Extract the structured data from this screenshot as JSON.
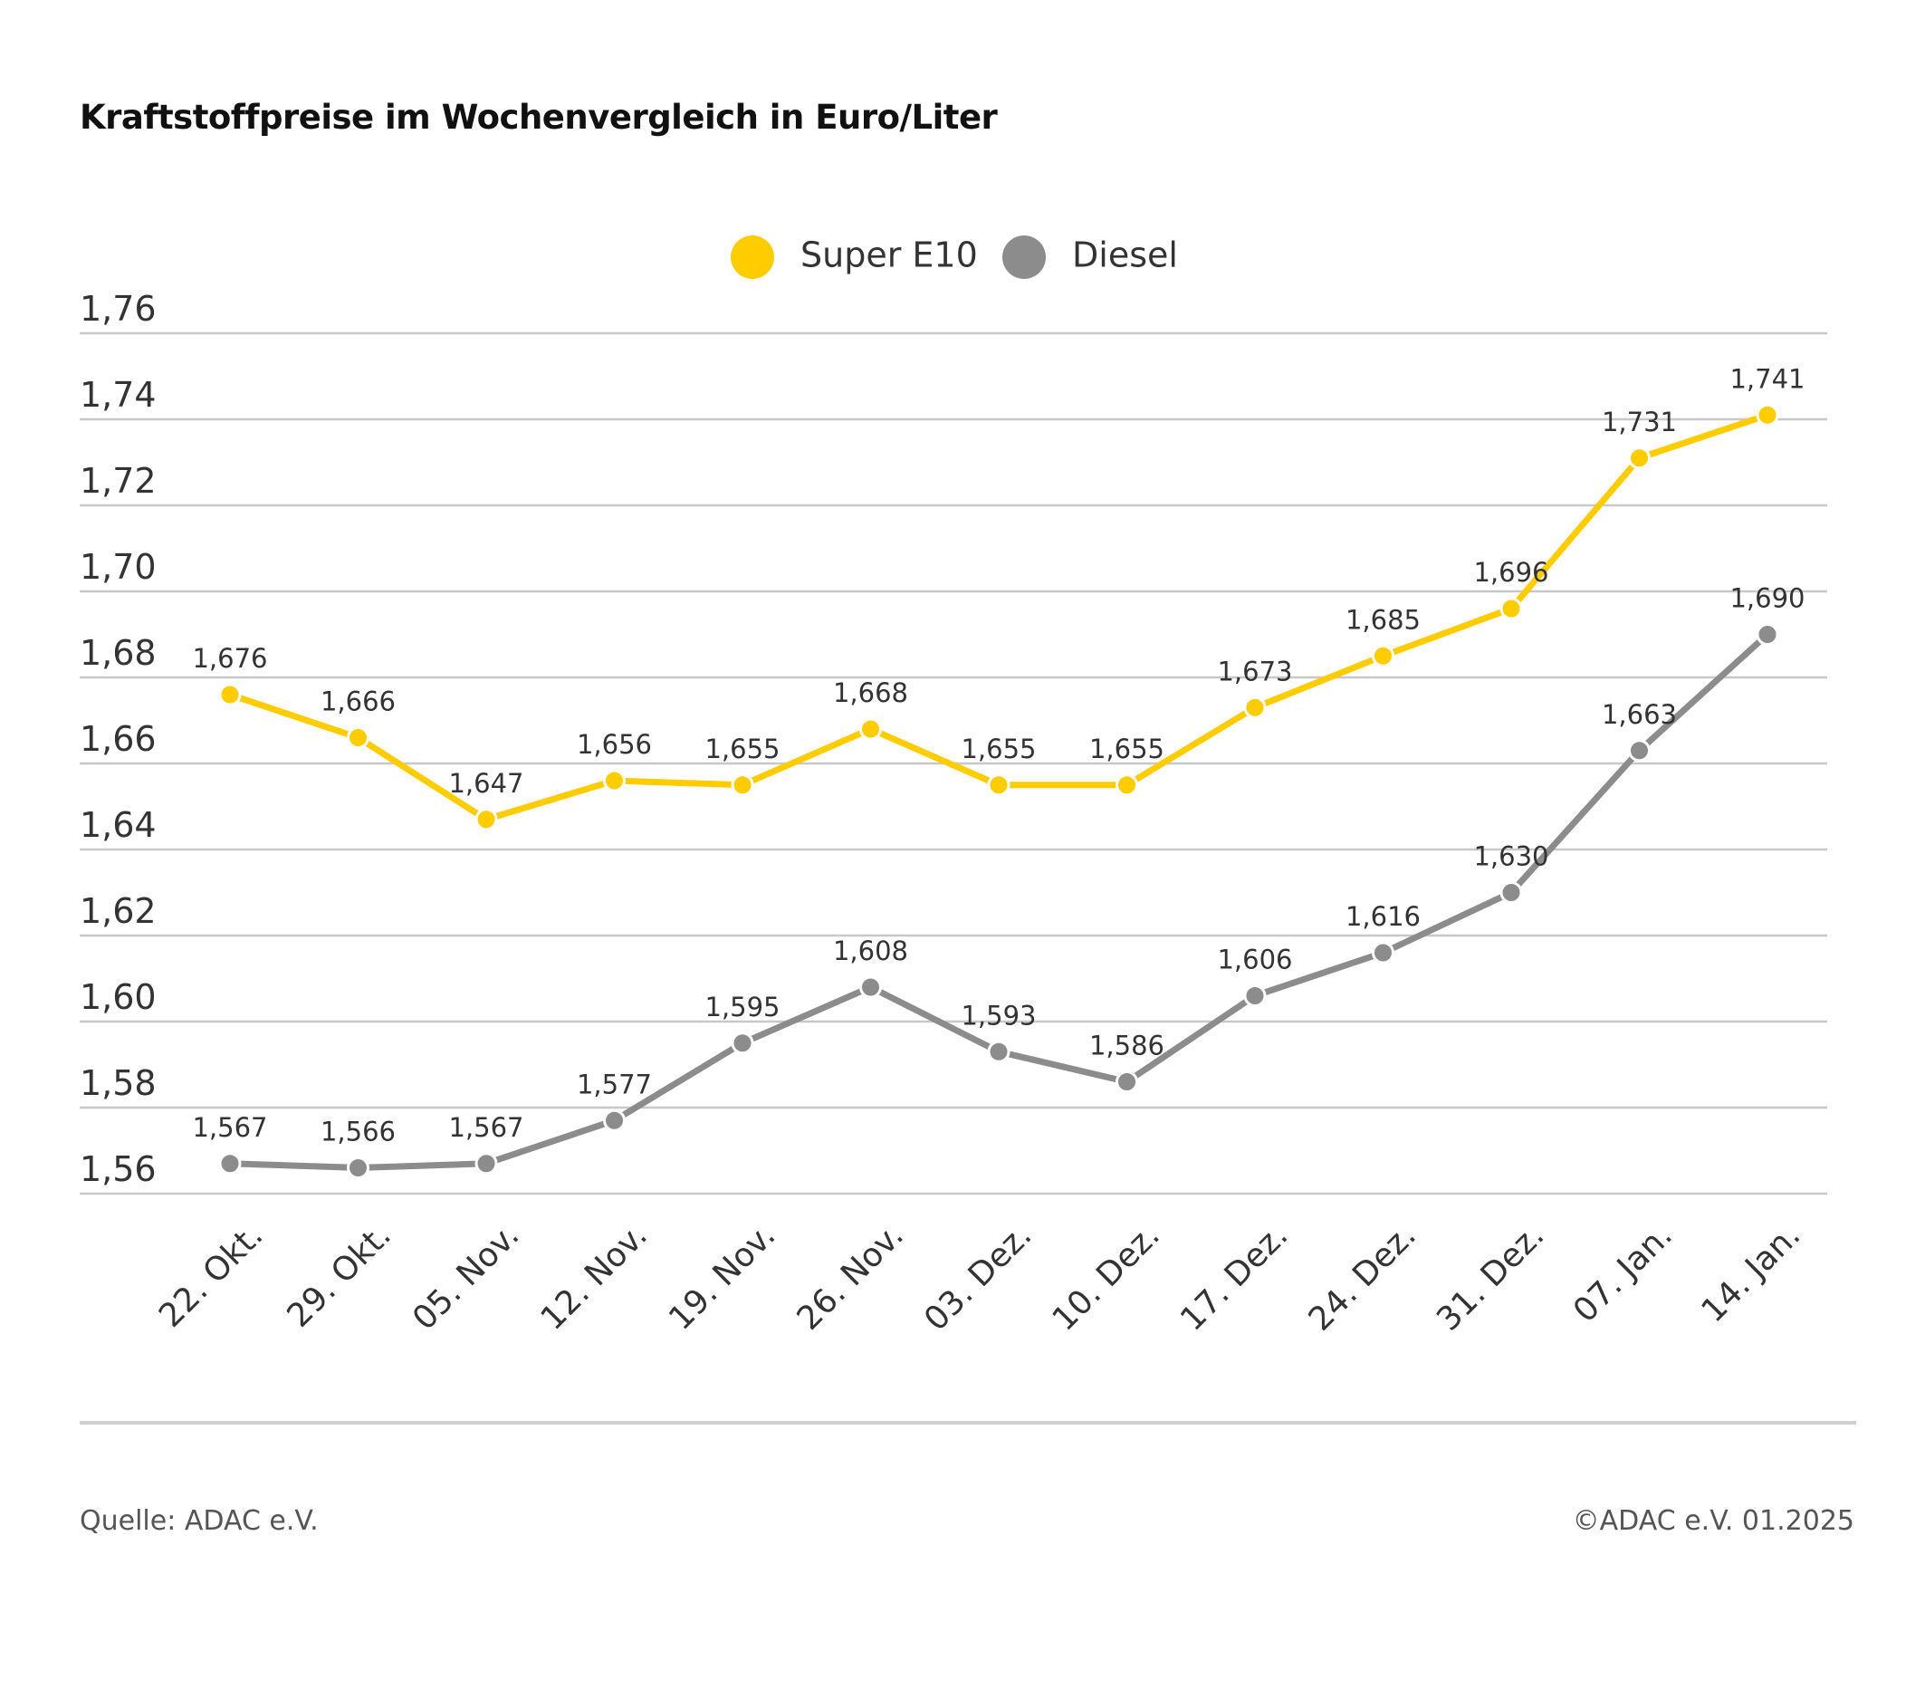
{
  "title": "Kraftstoffpreise im Wochenvergleich in Euro/Liter",
  "source": "Quelle: ADAC e.V.",
  "copyright": "©ADAC e.V. 01.2025",
  "chart_data": {
    "type": "line",
    "title": "Kraftstoffpreise im Wochenvergleich in Euro/Liter",
    "xlabel": "",
    "ylabel": "",
    "categories": [
      "22. Okt.",
      "29. Okt.",
      "05. Nov.",
      "12. Nov.",
      "19. Nov.",
      "26. Nov.",
      "03. Dez.",
      "10. Dez.",
      "17. Dez.",
      "24. Dez.",
      "31. Dez.",
      "07. Jan.",
      "14. Jan."
    ],
    "series": [
      {
        "name": "Super E10",
        "color": "#ffcc00",
        "values": [
          1.676,
          1.666,
          1.647,
          1.656,
          1.655,
          1.668,
          1.655,
          1.655,
          1.673,
          1.685,
          1.696,
          1.731,
          1.741
        ],
        "labels": [
          "1,676",
          "1,666",
          "1,647",
          "1,656",
          "1,655",
          "1,668",
          "1,655",
          "1,655",
          "1,673",
          "1,685",
          "1,696",
          "1,731",
          "1,741"
        ]
      },
      {
        "name": "Diesel",
        "color": "#8c8c8c",
        "values": [
          1.567,
          1.566,
          1.567,
          1.577,
          1.595,
          1.608,
          1.593,
          1.586,
          1.606,
          1.616,
          1.63,
          1.663,
          1.69
        ],
        "labels": [
          "1,567",
          "1,566",
          "1,567",
          "1,577",
          "1,595",
          "1,608",
          "1,593",
          "1,586",
          "1,606",
          "1,616",
          "1,630",
          "1,663",
          "1,690"
        ]
      }
    ],
    "ylim": [
      1.56,
      1.76
    ],
    "yticks": [
      1.56,
      1.58,
      1.6,
      1.62,
      1.64,
      1.66,
      1.68,
      1.7,
      1.72,
      1.74,
      1.76
    ],
    "ytick_labels": [
      "1,56",
      "1,58",
      "1,60",
      "1,62",
      "1,64",
      "1,66",
      "1,68",
      "1,70",
      "1,72",
      "1,74",
      "1,76"
    ],
    "grid": true,
    "legend": "top-center",
    "gridline_color": "#c8c8c8"
  }
}
